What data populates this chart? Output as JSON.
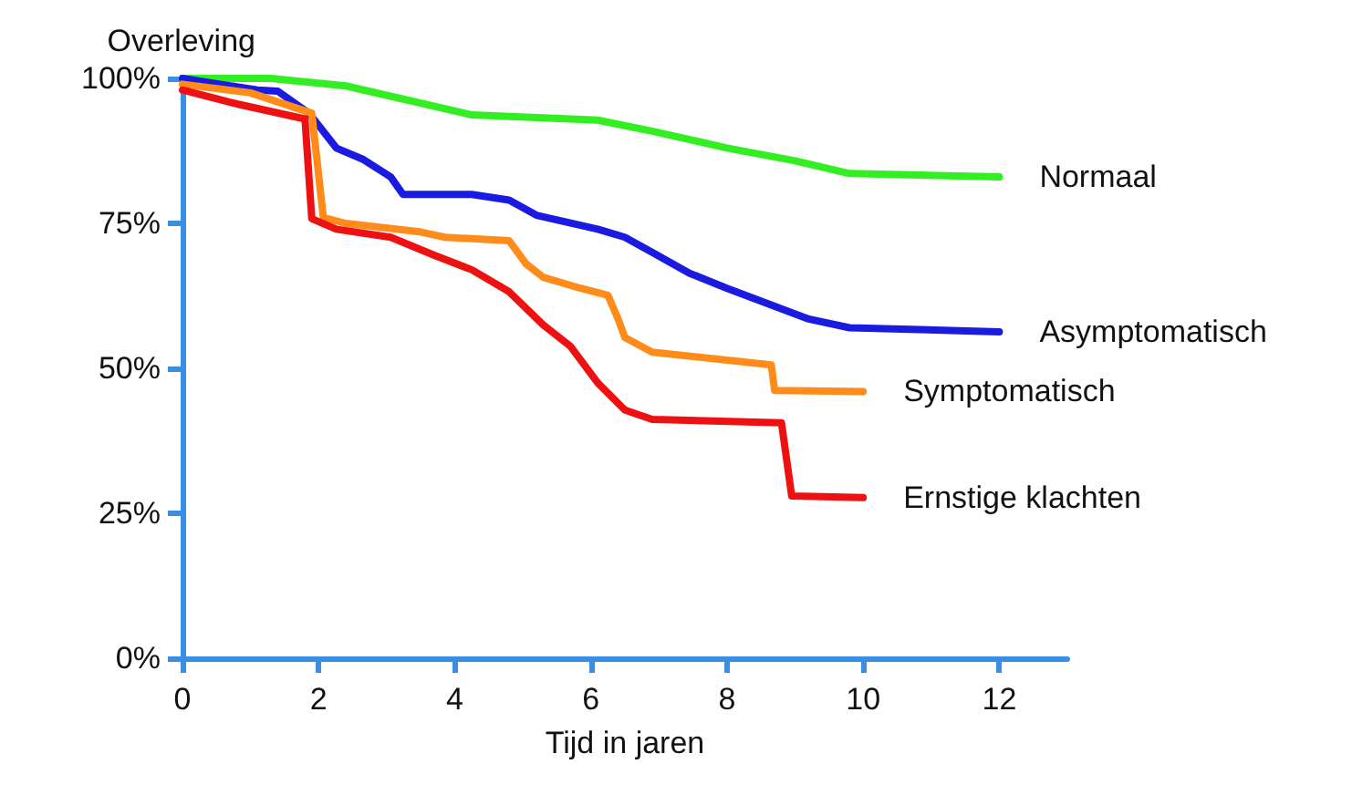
{
  "chart_data": {
    "type": "line",
    "xlabel": "Tijd in jaren",
    "ylabel": "Overleving",
    "xlim": [
      0,
      13
    ],
    "xticks": [
      0,
      2,
      4,
      6,
      8,
      10,
      12
    ],
    "ylim": [
      0,
      100
    ],
    "yticks": [
      {
        "value": 0,
        "label": "0%"
      },
      {
        "value": 25,
        "label": "25%"
      },
      {
        "value": 50,
        "label": "50%"
      },
      {
        "value": 75,
        "label": "75%"
      },
      {
        "value": 100,
        "label": "100%"
      }
    ],
    "grid": false,
    "legend": false,
    "marker": "none",
    "line_style": "solid",
    "series": [
      {
        "name": "Normaal",
        "color": "#33ee22",
        "x": [
          0,
          1.3,
          2.4,
          4.25,
          6.1,
          6.9,
          8,
          9,
          9.8,
          12
        ],
        "values": [
          100,
          100,
          98.7,
          93.7,
          92.8,
          90.9,
          88,
          85.8,
          83.6,
          83
        ]
      },
      {
        "name": "Asymptomatisch",
        "color": "#1a1ae0",
        "x": [
          0,
          1.1,
          1.4,
          1.86,
          2.26,
          2.66,
          3.06,
          3.24,
          4.25,
          4.8,
          5.2,
          6.1,
          6.5,
          6.9,
          7.45,
          8,
          9.2,
          9.8,
          12
        ],
        "values": [
          100,
          98,
          97.8,
          94,
          88,
          86,
          83,
          80,
          80,
          79,
          76.4,
          74,
          72.6,
          70,
          66.4,
          63.8,
          58.5,
          57,
          56.3
        ]
      },
      {
        "name": "Symptomatisch",
        "color": "#ff8c1a",
        "x": [
          0,
          1,
          1.9,
          2.07,
          2.4,
          3.46,
          3.86,
          4.8,
          5.05,
          5.3,
          5.85,
          6.25,
          6.4,
          6.5,
          6.9,
          8.65,
          8.7,
          10
        ],
        "values": [
          99,
          97.5,
          94,
          76,
          75,
          73.6,
          72.6,
          72,
          68,
          65.7,
          63.8,
          62.6,
          58.5,
          55.3,
          52.8,
          50.6,
          46.2,
          46
        ]
      },
      {
        "name": "Ernstige klachten",
        "color": "#ee1111",
        "x": [
          0,
          0.8,
          1.8,
          1.9,
          2.26,
          3.06,
          3.7,
          4.25,
          4.8,
          5.3,
          5.7,
          6.1,
          6.5,
          6.9,
          8.8,
          8.95,
          10
        ],
        "values": [
          98,
          95.6,
          93,
          75.8,
          74,
          72.6,
          69.5,
          67,
          63.2,
          57.5,
          53.8,
          47.5,
          42.8,
          41.2,
          40.6,
          28,
          27.7
        ]
      }
    ]
  }
}
